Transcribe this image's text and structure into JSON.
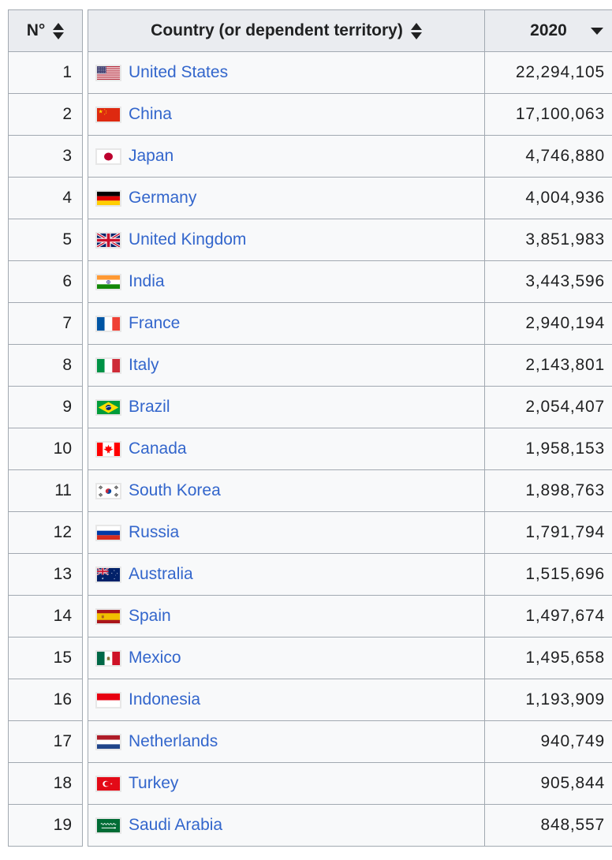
{
  "table": {
    "headers": {
      "rank": "N°",
      "country": "Country (or dependent territory)",
      "year": "2020"
    },
    "sort_state": {
      "rank": "unsorted",
      "country": "unsorted",
      "year": "descending"
    },
    "colors": {
      "border": "#a2a9b1",
      "header_bg": "#eaecf0",
      "row_bg": "#f8f9fa",
      "link": "#3366cc",
      "text": "#202122"
    },
    "rows": [
      {
        "rank": "1",
        "flag": "united-states",
        "country": "United States",
        "value": "22,294,105"
      },
      {
        "rank": "2",
        "flag": "china",
        "country": "China",
        "value": "17,100,063"
      },
      {
        "rank": "3",
        "flag": "japan",
        "country": "Japan",
        "value": "4,746,880"
      },
      {
        "rank": "4",
        "flag": "germany",
        "country": "Germany",
        "value": "4,004,936"
      },
      {
        "rank": "5",
        "flag": "united-kingdom",
        "country": "United Kingdom",
        "value": "3,851,983"
      },
      {
        "rank": "6",
        "flag": "india",
        "country": "India",
        "value": "3,443,596"
      },
      {
        "rank": "7",
        "flag": "france",
        "country": "France",
        "value": "2,940,194"
      },
      {
        "rank": "8",
        "flag": "italy",
        "country": "Italy",
        "value": "2,143,801"
      },
      {
        "rank": "9",
        "flag": "brazil",
        "country": "Brazil",
        "value": "2,054,407"
      },
      {
        "rank": "10",
        "flag": "canada",
        "country": "Canada",
        "value": "1,958,153"
      },
      {
        "rank": "11",
        "flag": "south-korea",
        "country": "South Korea",
        "value": "1,898,763"
      },
      {
        "rank": "12",
        "flag": "russia",
        "country": "Russia",
        "value": "1,791,794"
      },
      {
        "rank": "13",
        "flag": "australia",
        "country": "Australia",
        "value": "1,515,696"
      },
      {
        "rank": "14",
        "flag": "spain",
        "country": "Spain",
        "value": "1,497,674"
      },
      {
        "rank": "15",
        "flag": "mexico",
        "country": "Mexico",
        "value": "1,495,658"
      },
      {
        "rank": "16",
        "flag": "indonesia",
        "country": "Indonesia",
        "value": "1,193,909"
      },
      {
        "rank": "17",
        "flag": "netherlands",
        "country": "Netherlands",
        "value": "940,749"
      },
      {
        "rank": "18",
        "flag": "turkey",
        "country": "Turkey",
        "value": "905,844"
      },
      {
        "rank": "19",
        "flag": "saudi-arabia",
        "country": "Saudi Arabia",
        "value": "848,557"
      }
    ]
  }
}
